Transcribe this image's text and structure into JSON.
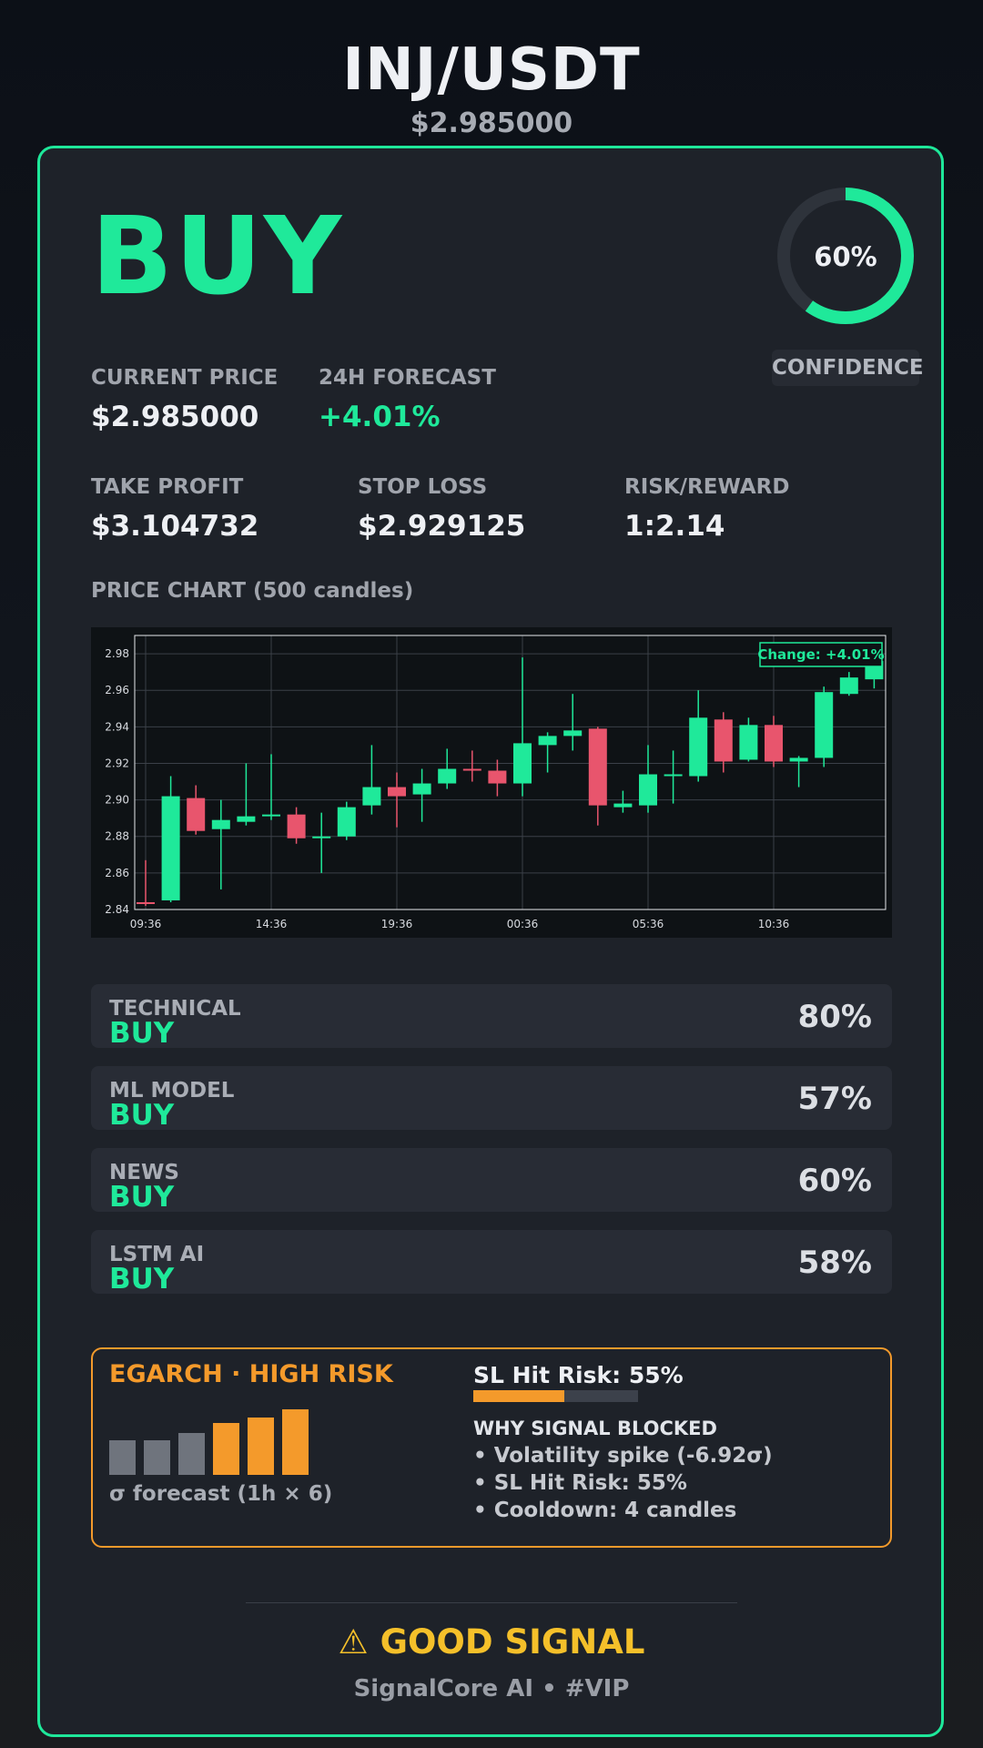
{
  "header": {
    "pair": "INJ/USDT",
    "price": "$2.985000"
  },
  "signal": {
    "label": "BUY",
    "confidence_value": 60,
    "confidence_text": "60%",
    "confidence_label": "CONFIDENCE"
  },
  "stats": {
    "current_price_label": "CURRENT PRICE",
    "current_price": "$2.985000",
    "forecast_label": "24H FORECAST",
    "forecast": "+4.01%",
    "take_profit_label": "TAKE PROFIT",
    "take_profit": "$3.104732",
    "stop_loss_label": "STOP LOSS",
    "stop_loss": "$2.929125",
    "rr_label": "RISK/REWARD",
    "rr": "1:2.14"
  },
  "chart_title": "PRICE CHART (500 candles)",
  "chart_data": {
    "type": "candlestick",
    "annotation": "Change: +4.01%",
    "ylim": [
      2.84,
      2.99
    ],
    "y_ticks": [
      2.84,
      2.86,
      2.88,
      2.9,
      2.92,
      2.94,
      2.96,
      2.98
    ],
    "y_tick_labels": [
      "2.84",
      "2.86",
      "2.88",
      "2.90",
      "2.92",
      "2.94",
      "2.96",
      "2.98"
    ],
    "x_tick_labels": [
      "09:36",
      "14:36",
      "19:36",
      "00:36",
      "05:36",
      "10:36"
    ],
    "x_tick_index": [
      0,
      5,
      10,
      15,
      20,
      25
    ],
    "candles": [
      {
        "o": 2.844,
        "h": 2.867,
        "l": 2.842,
        "c": 2.843
      },
      {
        "o": 2.845,
        "h": 2.913,
        "l": 2.844,
        "c": 2.902
      },
      {
        "o": 2.901,
        "h": 2.908,
        "l": 2.881,
        "c": 2.883
      },
      {
        "o": 2.884,
        "h": 2.9,
        "l": 2.851,
        "c": 2.889
      },
      {
        "o": 2.888,
        "h": 2.92,
        "l": 2.886,
        "c": 2.891
      },
      {
        "o": 2.892,
        "h": 2.925,
        "l": 2.889,
        "c": 2.892
      },
      {
        "o": 2.892,
        "h": 2.896,
        "l": 2.876,
        "c": 2.879
      },
      {
        "o": 2.88,
        "h": 2.893,
        "l": 2.86,
        "c": 2.88
      },
      {
        "o": 2.88,
        "h": 2.899,
        "l": 2.878,
        "c": 2.896
      },
      {
        "o": 2.897,
        "h": 2.93,
        "l": 2.892,
        "c": 2.907
      },
      {
        "o": 2.907,
        "h": 2.915,
        "l": 2.885,
        "c": 2.902
      },
      {
        "o": 2.903,
        "h": 2.917,
        "l": 2.888,
        "c": 2.909
      },
      {
        "o": 2.909,
        "h": 2.928,
        "l": 2.906,
        "c": 2.917
      },
      {
        "o": 2.917,
        "h": 2.927,
        "l": 2.91,
        "c": 2.916
      },
      {
        "o": 2.916,
        "h": 2.922,
        "l": 2.902,
        "c": 2.909
      },
      {
        "o": 2.909,
        "h": 2.978,
        "l": 2.902,
        "c": 2.931
      },
      {
        "o": 2.93,
        "h": 2.937,
        "l": 2.915,
        "c": 2.935
      },
      {
        "o": 2.935,
        "h": 2.958,
        "l": 2.927,
        "c": 2.938
      },
      {
        "o": 2.939,
        "h": 2.94,
        "l": 2.886,
        "c": 2.897
      },
      {
        "o": 2.896,
        "h": 2.905,
        "l": 2.893,
        "c": 2.898
      },
      {
        "o": 2.897,
        "h": 2.93,
        "l": 2.893,
        "c": 2.914
      },
      {
        "o": 2.914,
        "h": 2.927,
        "l": 2.898,
        "c": 2.914
      },
      {
        "o": 2.913,
        "h": 2.96,
        "l": 2.91,
        "c": 2.945
      },
      {
        "o": 2.944,
        "h": 2.948,
        "l": 2.915,
        "c": 2.921
      },
      {
        "o": 2.922,
        "h": 2.945,
        "l": 2.921,
        "c": 2.941
      },
      {
        "o": 2.941,
        "h": 2.946,
        "l": 2.918,
        "c": 2.921
      },
      {
        "o": 2.921,
        "h": 2.924,
        "l": 2.907,
        "c": 2.923
      },
      {
        "o": 2.923,
        "h": 2.962,
        "l": 2.918,
        "c": 2.959
      },
      {
        "o": 2.958,
        "h": 2.97,
        "l": 2.957,
        "c": 2.967
      },
      {
        "o": 2.966,
        "h": 2.985,
        "l": 2.961,
        "c": 2.976
      }
    ]
  },
  "models": [
    {
      "name": "TECHNICAL",
      "signal": "BUY",
      "pct": "80%"
    },
    {
      "name": "ML MODEL",
      "signal": "BUY",
      "pct": "57%"
    },
    {
      "name": "NEWS",
      "signal": "BUY",
      "pct": "60%"
    },
    {
      "name": "LSTM AI",
      "signal": "BUY",
      "pct": "58%"
    }
  ],
  "risk": {
    "title": "EGARCH · HIGH RISK",
    "sigma_label": "σ forecast (1h × 6)",
    "sigma_bars": [
      0.53,
      0.53,
      0.64,
      0.79,
      0.88,
      1.0
    ],
    "sigma_colors": [
      "#6f747d",
      "#6f747d",
      "#6f747d",
      "#f49a2b",
      "#f49a2b",
      "#f49a2b"
    ],
    "sl_hit_label": "SL Hit Risk: 55%",
    "sl_hit_value": 0.55,
    "why_title": "WHY SIGNAL BLOCKED",
    "why": [
      "• Volatility spike (-6.92σ)",
      "• SL Hit Risk: 55%",
      "• Cooldown: 4 candles"
    ]
  },
  "footer": {
    "verdict_icon": "warning-icon",
    "verdict": "GOOD SIGNAL",
    "brand": "SignalCore AI • #VIP"
  },
  "colors": {
    "accent": "#1fe99a",
    "down": "#e8556d",
    "warning": "#f49a2b",
    "verdict": "#f5c02a"
  }
}
